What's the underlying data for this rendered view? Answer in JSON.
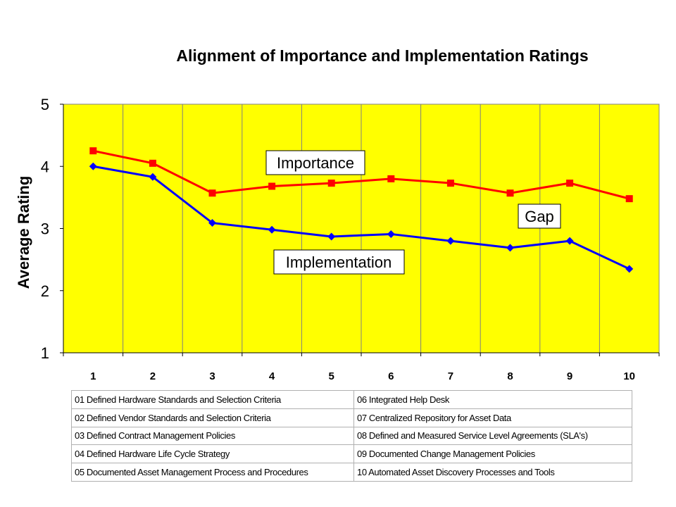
{
  "chart_data": {
    "type": "line",
    "title": "Alignment of Importance and Implementation Ratings",
    "xlabel": "",
    "ylabel": "Average Rating",
    "x": [
      "1",
      "2",
      "3",
      "4",
      "5",
      "6",
      "7",
      "8",
      "9",
      "10"
    ],
    "ylim": [
      1,
      5
    ],
    "yticks": [
      "1",
      "2",
      "3",
      "4",
      "5"
    ],
    "grid": "vertical",
    "plot_background": "#FFFF00",
    "series": [
      {
        "name": "Importance",
        "color": "#FF0000",
        "marker": "square",
        "values": [
          4.25,
          4.05,
          3.57,
          3.68,
          3.73,
          3.8,
          3.73,
          3.57,
          3.73,
          3.48
        ]
      },
      {
        "name": "Implementation",
        "color": "#0000FF",
        "marker": "diamond",
        "values": [
          4.0,
          3.83,
          3.09,
          2.98,
          2.87,
          2.91,
          2.8,
          2.69,
          2.8,
          2.35
        ]
      }
    ],
    "annotations": [
      "Importance",
      "Implementation",
      "Gap"
    ]
  },
  "legend_table": {
    "rows": [
      [
        "01 Defined Hardware Standards and Selection Criteria",
        "06 Integrated Help Desk"
      ],
      [
        "02 Defined Vendor Standards and Selection Criteria",
        "07 Centralized Repository for Asset Data"
      ],
      [
        "03 Defined Contract Management Policies",
        "08 Defined and Measured Service Level Agreements (SLA's)"
      ],
      [
        "04 Defined Hardware Life Cycle Strategy",
        "09 Documented Change Management Policies"
      ],
      [
        "05 Documented Asset Management Process and Procedures",
        "10 Automated Asset Discovery Processes and Tools"
      ]
    ]
  }
}
